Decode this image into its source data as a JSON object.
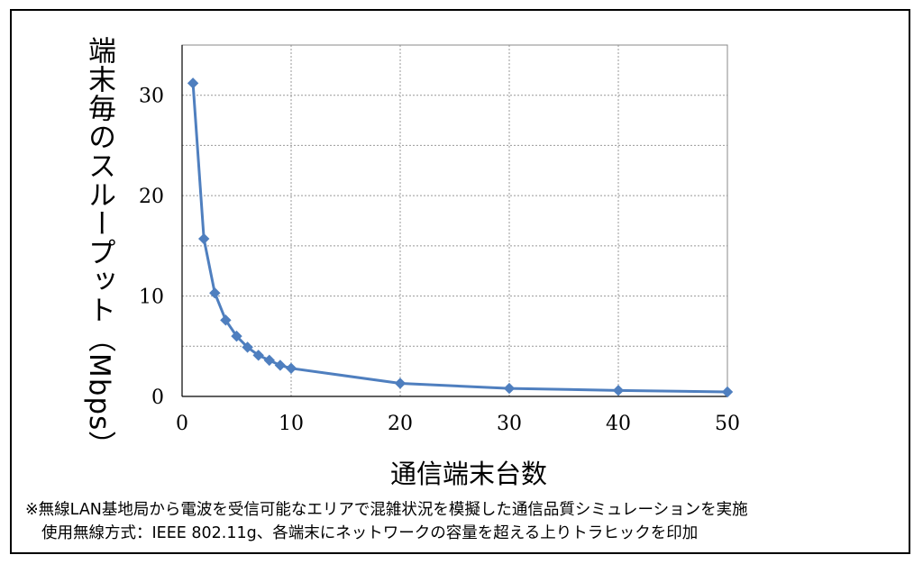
{
  "chart_data": {
    "type": "line",
    "xlabel": "通信端末台数",
    "ylabel": "端末毎のスループット（Mbps）",
    "xlim": [
      0,
      50
    ],
    "ylim": [
      0,
      35
    ],
    "x_ticks": [
      "0",
      "10",
      "20",
      "30",
      "40",
      "50"
    ],
    "y_ticks": [
      "0",
      "10",
      "20",
      "30"
    ],
    "grid": "dotted, both axes",
    "marker": "diamond",
    "series": [
      {
        "color": "#4F7FBF",
        "x": [
          1,
          2,
          3,
          4,
          5,
          6,
          7,
          8,
          9,
          10,
          20,
          30,
          40,
          50
        ],
        "values": [
          31.2,
          15.7,
          10.3,
          7.6,
          6.0,
          4.9,
          4.1,
          3.6,
          3.1,
          2.8,
          1.3,
          0.8,
          0.6,
          0.45
        ]
      }
    ]
  },
  "notes": {
    "line1": "※無線LAN基地局から電波を受信可能なエリアで混雑状況を模擬した通信品質シミュレーションを実施",
    "line2": "使用無線方式：IEEE 802.11g、各端末にネットワークの容量を超える上りトラヒックを印加"
  }
}
